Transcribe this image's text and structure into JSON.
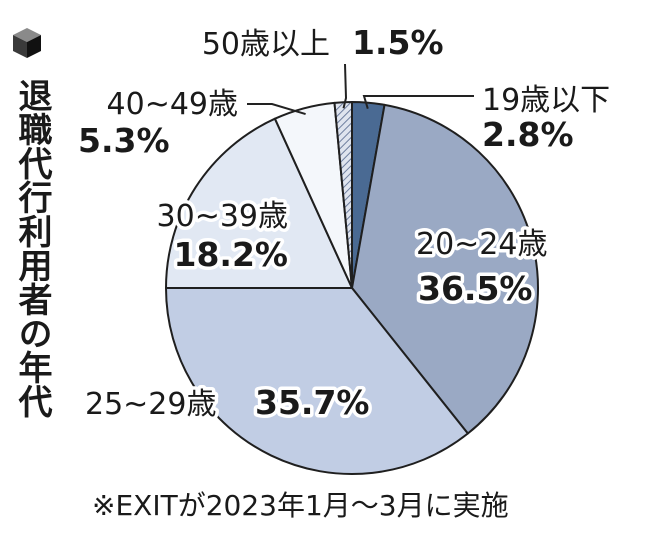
{
  "chart_data": {
    "type": "pie",
    "title": "退職代行利用者の年代",
    "categories": [
      "19歳以下",
      "20~24歳",
      "25~29歳",
      "30~39歳",
      "40~49歳",
      "50歳以上"
    ],
    "values": [
      2.8,
      36.5,
      35.7,
      18.2,
      5.3,
      1.5
    ],
    "value_labels": [
      "2.8%",
      "36.5%",
      "35.7%",
      "18.2%",
      "5.3%",
      "1.5%"
    ],
    "colors": [
      "#4a6a93",
      "#9aa9c4",
      "#c1cde4",
      "#e1e8f3",
      "#f4f7fb",
      "#c9d1e0"
    ],
    "hatched": [
      false,
      false,
      false,
      false,
      false,
      true
    ],
    "start": "top, clockwise",
    "legend": "none",
    "note": "※EXITが2023年1月～3月に実施"
  }
}
